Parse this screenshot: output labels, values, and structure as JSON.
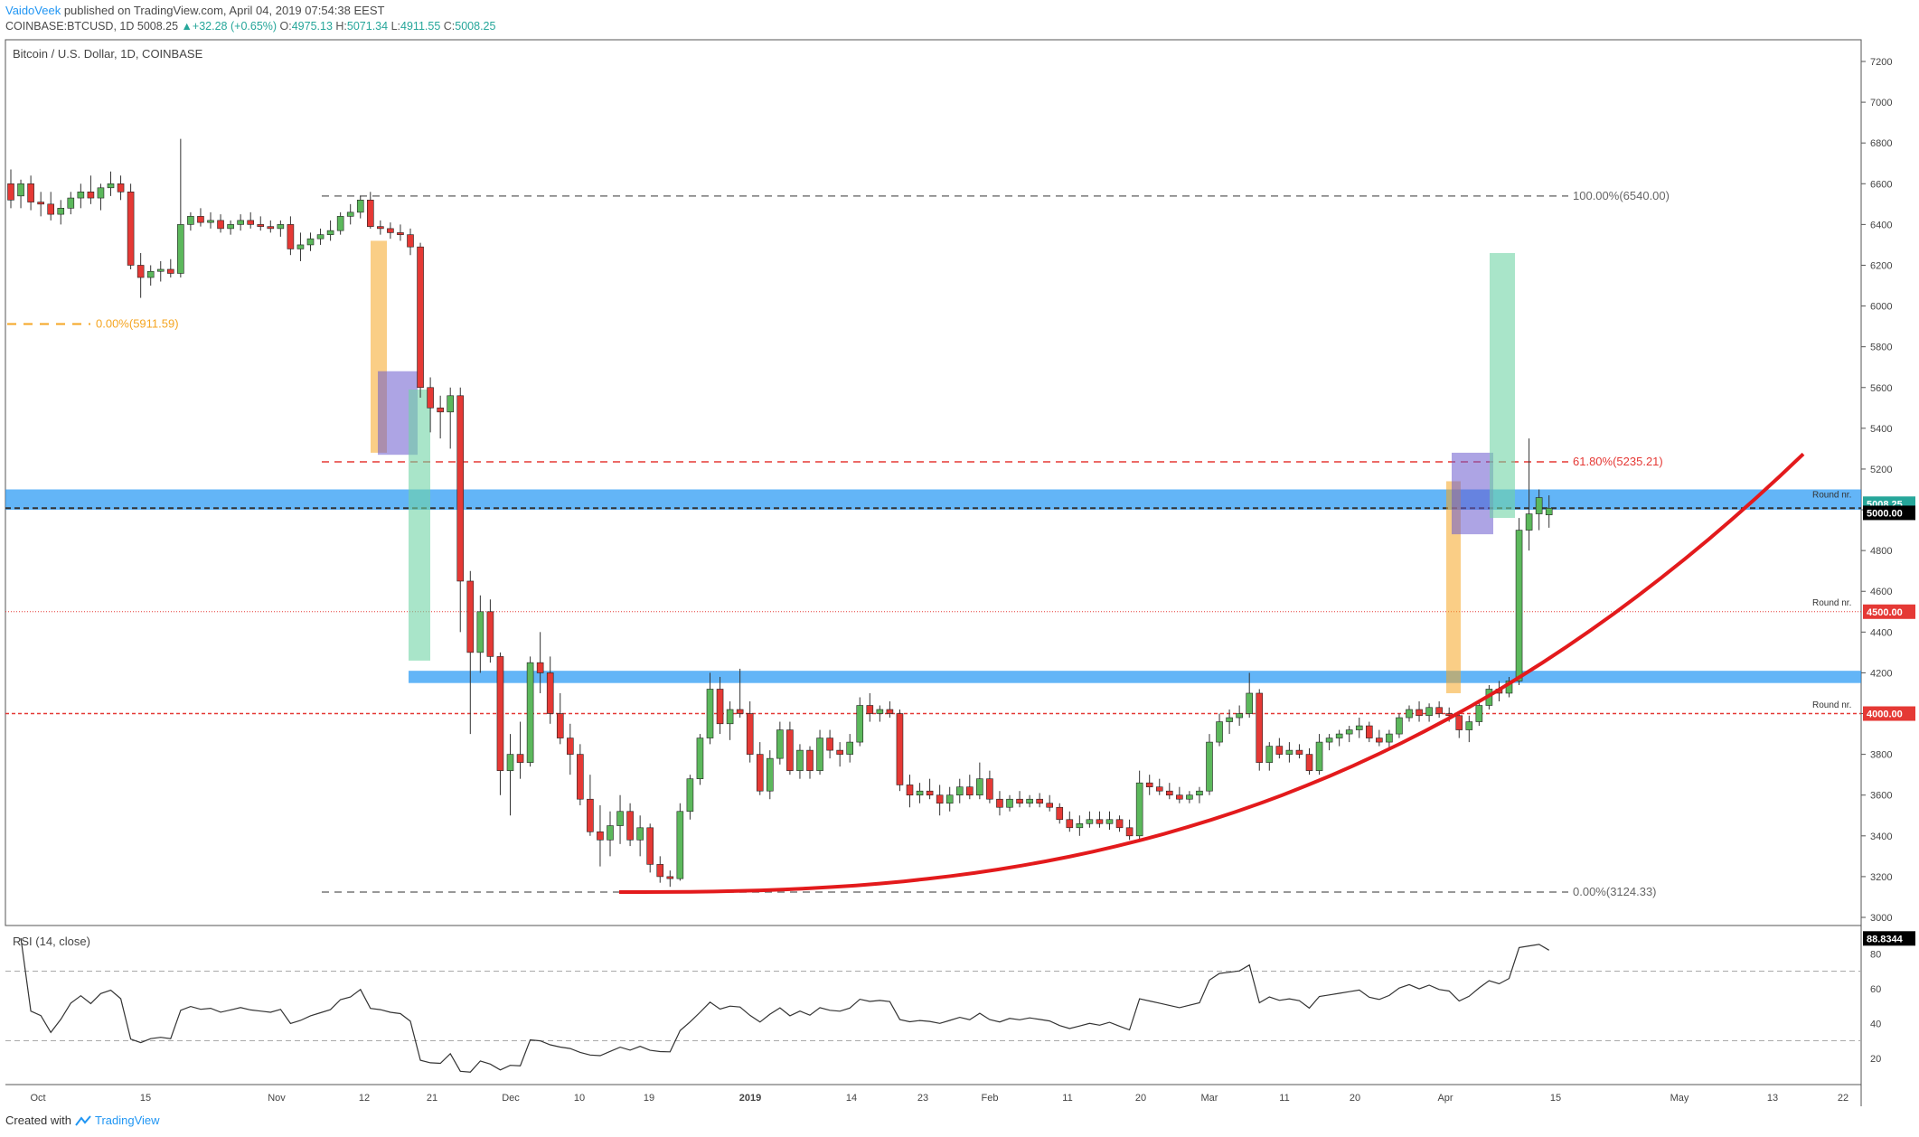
{
  "header": {
    "author": "VaidoVeek",
    "published_text": "published on TradingView.com, April 04, 2019 07:54:38 EEST",
    "symbol": "COINBASE:BTCUSD, 1D",
    "last": "5008.25",
    "change": "+32.28 (+0.65%)",
    "o_label": "O:",
    "o": "4975.13",
    "h_label": "H:",
    "h": "5071.34",
    "l_label": "L:",
    "l": "4911.55",
    "c_label": "C:",
    "c": "5008.25"
  },
  "pane_title": "Bitcoin / U.S. Dollar, 1D, COINBASE",
  "rsi_title": "RSI (14, close)",
  "footer": {
    "created_with": "Created with",
    "brand": "TradingView"
  },
  "colors": {
    "up": "#26a69a",
    "up_fill": "#5cb85c",
    "down": "#e53935",
    "accent": "#2196f3",
    "orange": "#f5a623",
    "violet": "#6a5acd",
    "mint": "#6fd3a5",
    "curve": "#e31a1c"
  },
  "chart_data": {
    "type": "candlestick",
    "title": "Bitcoin / U.S. Dollar, 1D, COINBASE",
    "ylim": [
      3000,
      7200
    ],
    "y_ticks": [
      3000,
      3200,
      3400,
      3600,
      3800,
      4000,
      4200,
      4400,
      4600,
      4800,
      5000,
      5200,
      5400,
      5600,
      5800,
      6000,
      6200,
      6400,
      6600,
      6800,
      7000,
      7200
    ],
    "x_ticks": [
      "Oct",
      "15",
      "Nov",
      "12",
      "21",
      "Dec",
      "10",
      "19",
      "2019",
      "14",
      "23",
      "Feb",
      "11",
      "20",
      "Mar",
      "11",
      "20",
      "Apr",
      "15",
      "May",
      "13",
      "22"
    ],
    "price_labels": {
      "last": "5008.25",
      "level_5000": "5000.00",
      "level_4500": "4500.00",
      "level_4000": "4000.00"
    },
    "round_nr_label": "Round nr.",
    "fib_levels": [
      {
        "label": "100.00%(6540.00)",
        "value": 6540
      },
      {
        "label": "61.80%(5235.21)",
        "value": 5235.21
      },
      {
        "label": "0.00%(3124.33)",
        "value": 3124.33
      },
      {
        "label": "0.00%(5911.59)",
        "value": 5911.59
      }
    ],
    "support_zones": [
      [
        5000,
        5100
      ],
      [
        4150,
        4210
      ]
    ],
    "ohlc": [
      [
        6600,
        6670,
        6480,
        6520
      ],
      [
        6540,
        6620,
        6480,
        6600
      ],
      [
        6600,
        6640,
        6470,
        6510
      ],
      [
        6510,
        6560,
        6440,
        6500
      ],
      [
        6500,
        6560,
        6420,
        6450
      ],
      [
        6450,
        6520,
        6400,
        6480
      ],
      [
        6480,
        6560,
        6450,
        6530
      ],
      [
        6530,
        6600,
        6480,
        6560
      ],
      [
        6560,
        6640,
        6500,
        6530
      ],
      [
        6530,
        6600,
        6470,
        6580
      ],
      [
        6580,
        6660,
        6540,
        6600
      ],
      [
        6600,
        6640,
        6520,
        6560
      ],
      [
        6560,
        6600,
        6180,
        6200
      ],
      [
        6200,
        6260,
        6040,
        6140
      ],
      [
        6140,
        6200,
        6100,
        6170
      ],
      [
        6170,
        6220,
        6120,
        6180
      ],
      [
        6180,
        6230,
        6140,
        6160
      ],
      [
        6160,
        6820,
        6140,
        6400
      ],
      [
        6400,
        6460,
        6370,
        6440
      ],
      [
        6440,
        6480,
        6390,
        6410
      ],
      [
        6410,
        6460,
        6380,
        6420
      ],
      [
        6420,
        6450,
        6360,
        6380
      ],
      [
        6380,
        6420,
        6350,
        6400
      ],
      [
        6400,
        6450,
        6370,
        6420
      ],
      [
        6420,
        6460,
        6380,
        6400
      ],
      [
        6400,
        6440,
        6370,
        6390
      ],
      [
        6390,
        6420,
        6360,
        6380
      ],
      [
        6380,
        6420,
        6340,
        6400
      ],
      [
        6400,
        6440,
        6250,
        6280
      ],
      [
        6280,
        6360,
        6220,
        6300
      ],
      [
        6300,
        6360,
        6270,
        6330
      ],
      [
        6330,
        6380,
        6300,
        6350
      ],
      [
        6350,
        6420,
        6320,
        6370
      ],
      [
        6370,
        6460,
        6350,
        6440
      ],
      [
        6440,
        6500,
        6400,
        6460
      ],
      [
        6460,
        6540,
        6430,
        6520
      ],
      [
        6520,
        6560,
        6380,
        6390
      ],
      [
        6390,
        6420,
        6350,
        6380
      ],
      [
        6380,
        6410,
        6330,
        6360
      ],
      [
        6360,
        6400,
        6320,
        6350
      ],
      [
        6350,
        6380,
        6250,
        6290
      ],
      [
        6290,
        6310,
        5550,
        5600
      ],
      [
        5600,
        5650,
        5380,
        5500
      ],
      [
        5500,
        5560,
        5350,
        5480
      ],
      [
        5480,
        5600,
        5300,
        5560
      ],
      [
        5560,
        5600,
        4400,
        4650
      ],
      [
        4650,
        4700,
        3900,
        4300
      ],
      [
        4300,
        4580,
        4200,
        4500
      ],
      [
        4500,
        4560,
        4250,
        4280
      ],
      [
        4280,
        4300,
        3600,
        3720
      ],
      [
        3720,
        3900,
        3500,
        3800
      ],
      [
        3800,
        3960,
        3680,
        3760
      ],
      [
        3760,
        4280,
        3740,
        4250
      ],
      [
        4250,
        4400,
        4100,
        4200
      ],
      [
        4200,
        4280,
        3950,
        4000
      ],
      [
        4000,
        4100,
        3850,
        3880
      ],
      [
        3880,
        3950,
        3700,
        3800
      ],
      [
        3800,
        3850,
        3550,
        3580
      ],
      [
        3580,
        3700,
        3400,
        3420
      ],
      [
        3420,
        3550,
        3250,
        3380
      ],
      [
        3380,
        3520,
        3300,
        3450
      ],
      [
        3450,
        3600,
        3360,
        3520
      ],
      [
        3520,
        3560,
        3350,
        3380
      ],
      [
        3380,
        3500,
        3300,
        3440
      ],
      [
        3440,
        3460,
        3220,
        3260
      ],
      [
        3260,
        3300,
        3170,
        3200
      ],
      [
        3200,
        3230,
        3150,
        3190
      ],
      [
        3190,
        3560,
        3180,
        3520
      ],
      [
        3520,
        3700,
        3480,
        3680
      ],
      [
        3680,
        3900,
        3650,
        3880
      ],
      [
        3880,
        4200,
        3850,
        4120
      ],
      [
        4120,
        4180,
        3900,
        3950
      ],
      [
        3950,
        4060,
        3870,
        4020
      ],
      [
        4020,
        4220,
        3980,
        4000
      ],
      [
        4000,
        4060,
        3760,
        3800
      ],
      [
        3800,
        3860,
        3600,
        3620
      ],
      [
        3620,
        3820,
        3580,
        3780
      ],
      [
        3780,
        3960,
        3750,
        3920
      ],
      [
        3920,
        3960,
        3700,
        3720
      ],
      [
        3720,
        3850,
        3680,
        3820
      ],
      [
        3820,
        3840,
        3680,
        3720
      ],
      [
        3720,
        3920,
        3700,
        3880
      ],
      [
        3880,
        3920,
        3780,
        3820
      ],
      [
        3820,
        3860,
        3740,
        3800
      ],
      [
        3800,
        3900,
        3760,
        3860
      ],
      [
        3860,
        4080,
        3840,
        4040
      ],
      [
        4040,
        4100,
        3960,
        4000
      ],
      [
        4000,
        4040,
        3960,
        4020
      ],
      [
        4020,
        4060,
        3980,
        4000
      ],
      [
        4000,
        4020,
        3620,
        3650
      ],
      [
        3650,
        3700,
        3540,
        3600
      ],
      [
        3600,
        3660,
        3560,
        3620
      ],
      [
        3620,
        3680,
        3580,
        3600
      ],
      [
        3600,
        3650,
        3500,
        3560
      ],
      [
        3560,
        3640,
        3520,
        3600
      ],
      [
        3600,
        3680,
        3560,
        3640
      ],
      [
        3640,
        3700,
        3580,
        3600
      ],
      [
        3600,
        3760,
        3580,
        3680
      ],
      [
        3680,
        3720,
        3560,
        3580
      ],
      [
        3580,
        3620,
        3500,
        3540
      ],
      [
        3540,
        3600,
        3520,
        3580
      ],
      [
        3580,
        3620,
        3540,
        3560
      ],
      [
        3560,
        3600,
        3540,
        3580
      ],
      [
        3580,
        3610,
        3540,
        3560
      ],
      [
        3560,
        3600,
        3520,
        3540
      ],
      [
        3540,
        3560,
        3460,
        3480
      ],
      [
        3480,
        3520,
        3420,
        3440
      ],
      [
        3440,
        3500,
        3400,
        3460
      ],
      [
        3460,
        3520,
        3440,
        3480
      ],
      [
        3480,
        3520,
        3440,
        3460
      ],
      [
        3460,
        3520,
        3430,
        3480
      ],
      [
        3480,
        3500,
        3420,
        3440
      ],
      [
        3440,
        3480,
        3380,
        3400
      ],
      [
        3400,
        3720,
        3380,
        3660
      ],
      [
        3660,
        3700,
        3600,
        3640
      ],
      [
        3640,
        3680,
        3600,
        3620
      ],
      [
        3620,
        3660,
        3580,
        3600
      ],
      [
        3600,
        3640,
        3560,
        3580
      ],
      [
        3580,
        3620,
        3560,
        3600
      ],
      [
        3600,
        3640,
        3560,
        3620
      ],
      [
        3620,
        3900,
        3600,
        3860
      ],
      [
        3860,
        4000,
        3840,
        3960
      ],
      [
        3960,
        4020,
        3900,
        3980
      ],
      [
        3980,
        4040,
        3940,
        4000
      ],
      [
        4000,
        4200,
        3980,
        4100
      ],
      [
        4100,
        4120,
        3720,
        3760
      ],
      [
        3760,
        3860,
        3720,
        3840
      ],
      [
        3840,
        3880,
        3780,
        3800
      ],
      [
        3800,
        3860,
        3760,
        3820
      ],
      [
        3820,
        3850,
        3780,
        3800
      ],
      [
        3800,
        3830,
        3700,
        3720
      ],
      [
        3720,
        3900,
        3700,
        3860
      ],
      [
        3860,
        3900,
        3820,
        3880
      ],
      [
        3880,
        3920,
        3840,
        3900
      ],
      [
        3900,
        3940,
        3860,
        3920
      ],
      [
        3920,
        3980,
        3880,
        3940
      ],
      [
        3940,
        3960,
        3860,
        3880
      ],
      [
        3880,
        3920,
        3840,
        3860
      ],
      [
        3860,
        3920,
        3820,
        3900
      ],
      [
        3900,
        4000,
        3880,
        3980
      ],
      [
        3980,
        4040,
        3960,
        4020
      ],
      [
        4020,
        4060,
        3960,
        3990
      ],
      [
        3990,
        4050,
        3960,
        4030
      ],
      [
        4030,
        4060,
        3980,
        4000
      ],
      [
        4000,
        4030,
        3960,
        3990
      ],
      [
        3990,
        4010,
        3880,
        3920
      ],
      [
        3920,
        3990,
        3860,
        3960
      ],
      [
        3960,
        4060,
        3940,
        4040
      ],
      [
        4040,
        4140,
        4020,
        4120
      ],
      [
        4120,
        4160,
        4060,
        4100
      ],
      [
        4100,
        4180,
        4080,
        4160
      ],
      [
        4160,
        4960,
        4140,
        4900
      ],
      [
        4900,
        5350,
        4800,
        4980
      ],
      [
        4980,
        5100,
        4900,
        5060
      ],
      [
        4975,
        5071,
        4912,
        5008
      ]
    ],
    "rsi": {
      "label": "RSI (14, close)",
      "ylim": [
        10,
        90
      ],
      "ticks": [
        20,
        40,
        60,
        80
      ],
      "bands": [
        30,
        70
      ],
      "last": "88.8344"
    }
  }
}
